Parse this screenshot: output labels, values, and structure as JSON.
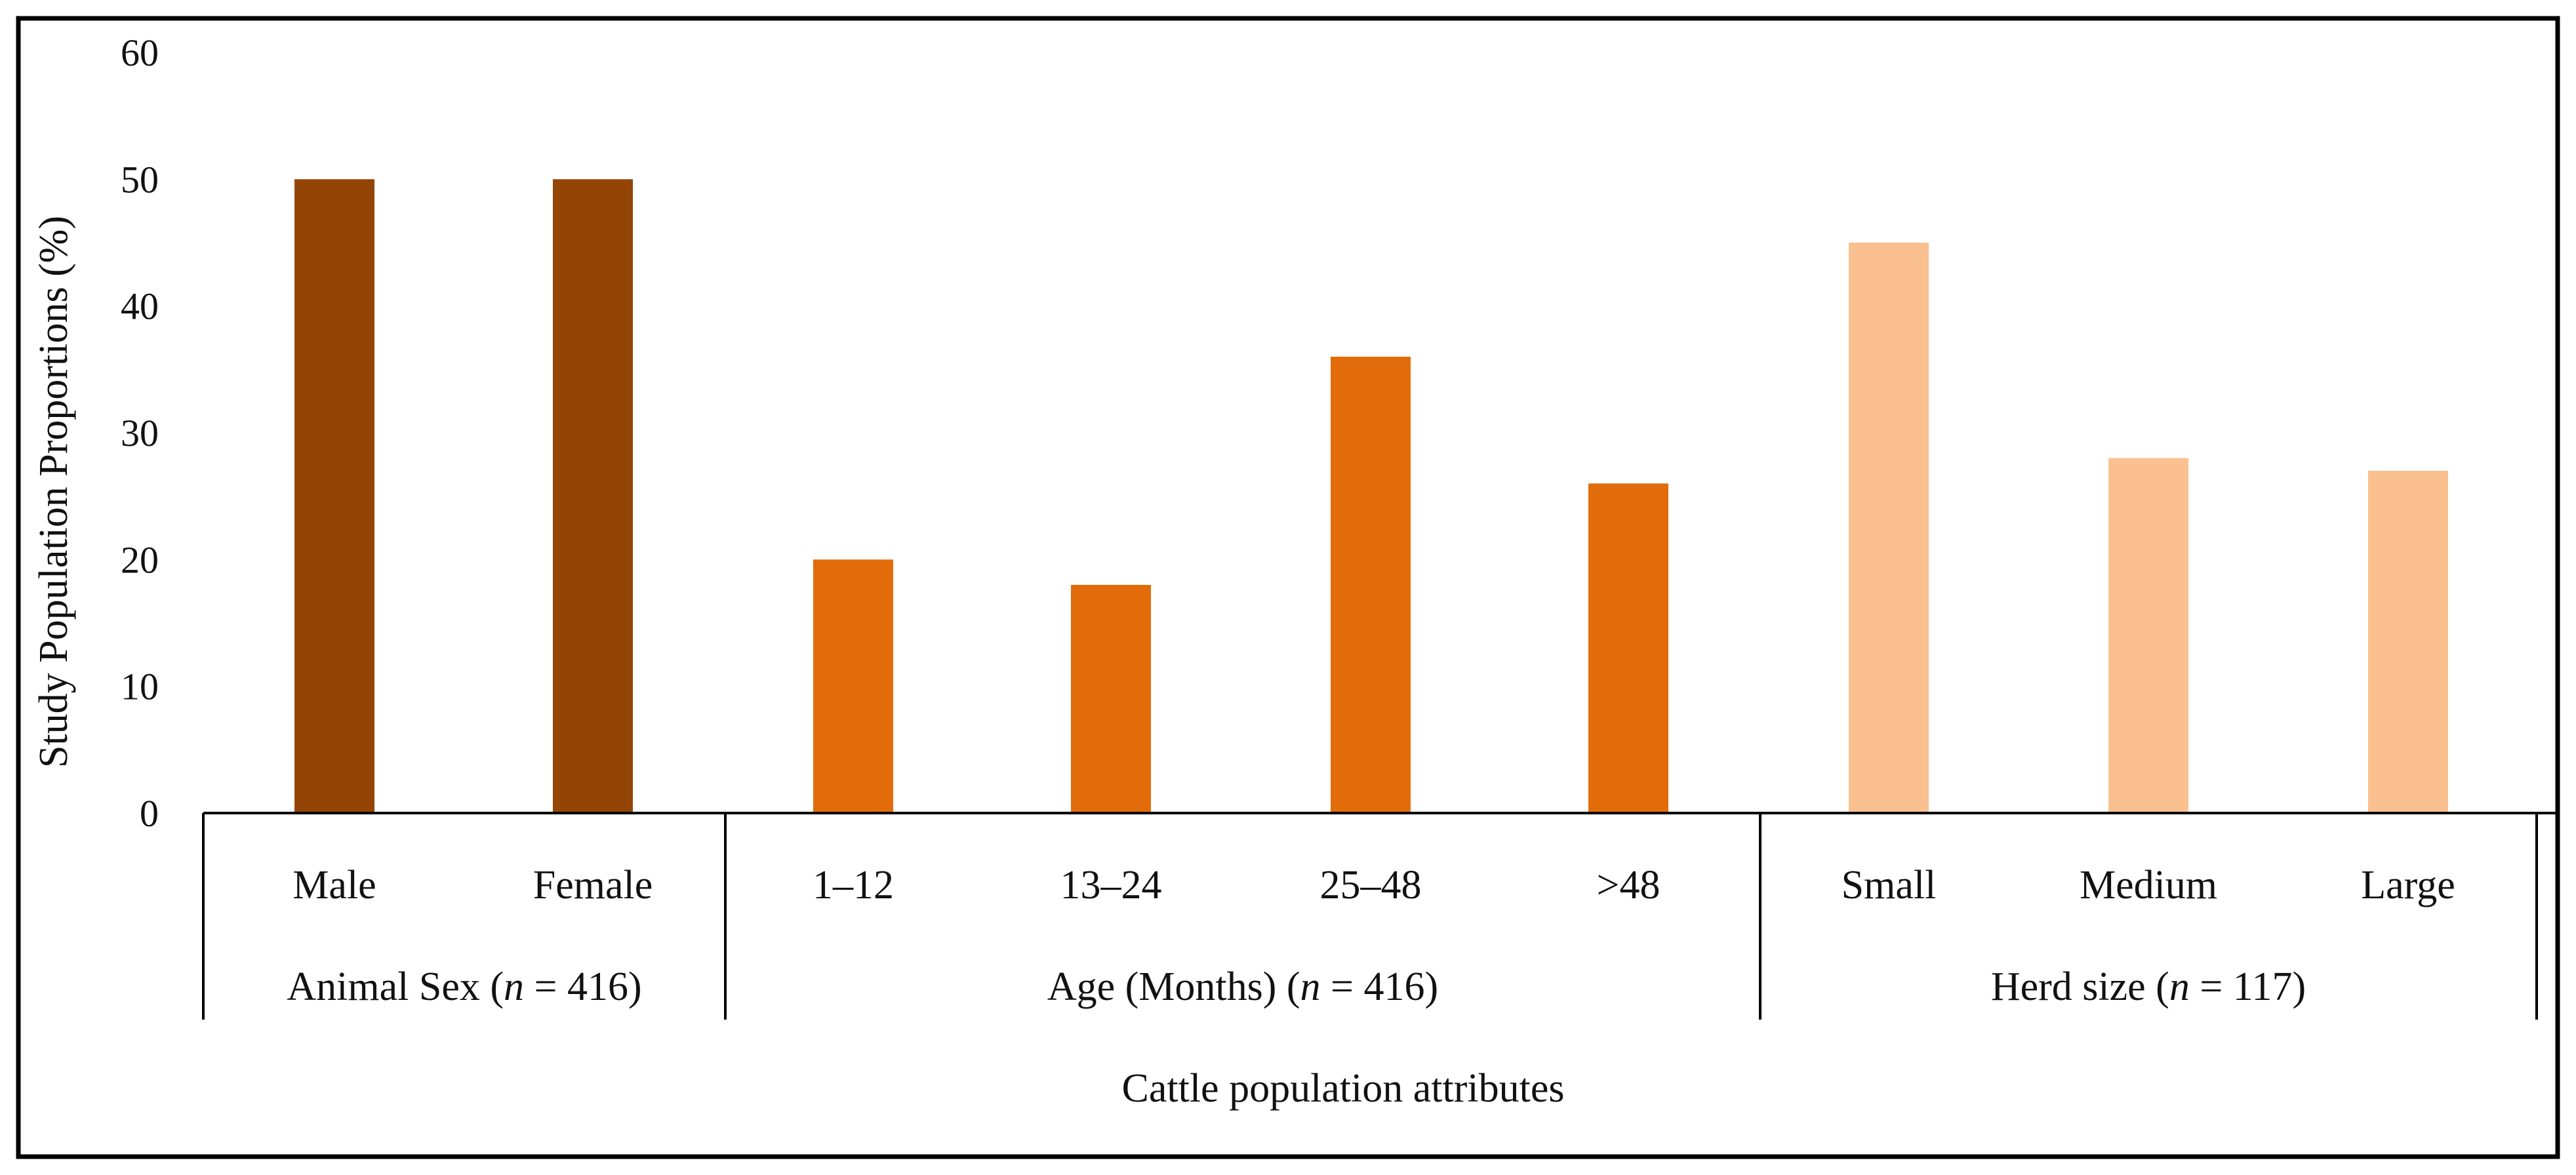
{
  "chart_data": {
    "type": "bar",
    "ylabel": "Study Population Proportions (%)",
    "xlabel": "Cattle population attributes",
    "ylim": [
      0,
      60
    ],
    "yticks": [
      0,
      10,
      20,
      30,
      40,
      50,
      60
    ],
    "groups": [
      {
        "label_prefix": "Animal Sex (",
        "n_symbol": "n",
        "label_suffix": " = 416)",
        "color": "#944506",
        "categories": [
          "Male",
          "Female"
        ],
        "values": [
          50,
          50
        ]
      },
      {
        "label_prefix": "Age (Months) (",
        "n_symbol": "n",
        "label_suffix": " = 416)",
        "color": "#E36C0A",
        "categories": [
          "1–12",
          "13–24",
          "25–48",
          ">48"
        ],
        "values": [
          20,
          18,
          36,
          26
        ]
      },
      {
        "label_prefix": "Herd size (",
        "n_symbol": "n",
        "label_suffix": " = 117)",
        "color": "#FAC090",
        "categories": [
          "Small",
          "Medium",
          "Large"
        ],
        "values": [
          45,
          28,
          27
        ]
      }
    ]
  }
}
